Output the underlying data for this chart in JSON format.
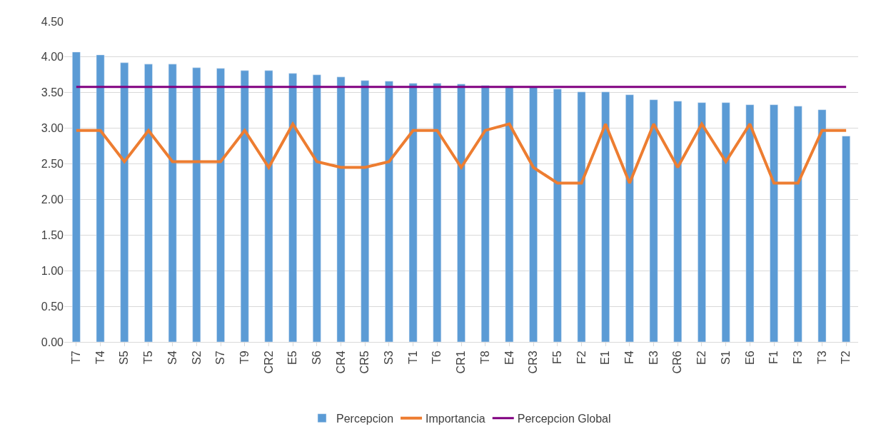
{
  "chart_data": {
    "type": "bar",
    "categories": [
      "T7",
      "T4",
      "S5",
      "T5",
      "S4",
      "S2",
      "S7",
      "T9",
      "CR2",
      "E5",
      "S6",
      "CR4",
      "CR5",
      "S3",
      "T1",
      "T6",
      "CR1",
      "T8",
      "E4",
      "CR3",
      "F5",
      "F2",
      "E1",
      "F4",
      "E3",
      "CR6",
      "E2",
      "S1",
      "E6",
      "F1",
      "F3",
      "T3",
      "T2"
    ],
    "series": [
      {
        "name": "Percepcion",
        "color": "#5b9bd5",
        "values": [
          4.07,
          4.03,
          3.92,
          3.9,
          3.9,
          3.85,
          3.84,
          3.81,
          3.81,
          3.77,
          3.75,
          3.72,
          3.67,
          3.66,
          3.63,
          3.63,
          3.62,
          3.6,
          3.59,
          3.58,
          3.55,
          3.51,
          3.51,
          3.47,
          3.4,
          3.38,
          3.36,
          3.36,
          3.33,
          3.33,
          3.31,
          3.26,
          2.89
        ]
      },
      {
        "name": "Importancia",
        "type": "line",
        "color": "#ed7d31",
        "values": [
          2.97,
          2.97,
          2.53,
          2.97,
          2.53,
          2.53,
          2.53,
          2.97,
          2.45,
          3.06,
          2.53,
          2.45,
          2.45,
          2.53,
          2.97,
          2.97,
          2.45,
          2.97,
          3.06,
          2.45,
          2.23,
          2.23,
          3.06,
          2.23,
          3.06,
          2.45,
          3.06,
          2.53,
          3.06,
          2.23,
          2.23,
          2.97,
          2.97
        ]
      },
      {
        "name": "Percepcion Global",
        "type": "line",
        "color": "#800080",
        "values": [
          3.58,
          3.58,
          3.58,
          3.58,
          3.58,
          3.58,
          3.58,
          3.58,
          3.58,
          3.58,
          3.58,
          3.58,
          3.58,
          3.58,
          3.58,
          3.58,
          3.58,
          3.58,
          3.58,
          3.58,
          3.58,
          3.58,
          3.58,
          3.58,
          3.58,
          3.58,
          3.58,
          3.58,
          3.58,
          3.58,
          3.58,
          3.58,
          3.58
        ]
      }
    ],
    "ylim": [
      0,
      4.5
    ],
    "yticks": [
      {
        "value": 0,
        "label": "0.00"
      },
      {
        "value": 0.5,
        "label": "0.50"
      },
      {
        "value": 1,
        "label": "1.00"
      },
      {
        "value": 1.5,
        "label": "1.50"
      },
      {
        "value": 2,
        "label": "2.00"
      },
      {
        "value": 2.5,
        "label": "2.50"
      },
      {
        "value": 3,
        "label": "3.00"
      },
      {
        "value": 3.5,
        "label": "3.50"
      },
      {
        "value": 4,
        "label": "4.00"
      },
      {
        "value": 4.5,
        "label": "4.50"
      }
    ],
    "grid": "y",
    "legend": "bottom",
    "marker": "none",
    "line_style": "solid"
  }
}
